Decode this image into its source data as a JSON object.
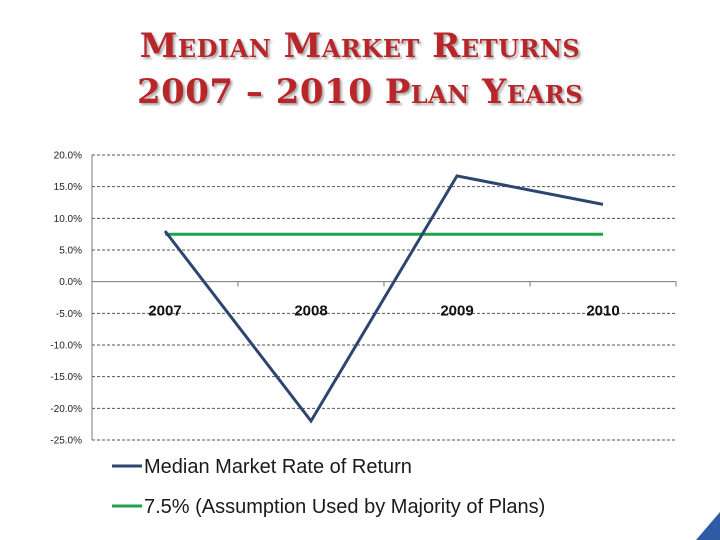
{
  "title_line1": "Median Market Returns",
  "title_line2": "2007 – 2010 Plan Years",
  "chart_data": {
    "type": "line",
    "categories": [
      "2007",
      "2008",
      "2009",
      "2010"
    ],
    "ylim": [
      -25,
      20
    ],
    "ytick_step": 5,
    "ytick_labels": [
      "20.0%",
      "15.0%",
      "10.0%",
      "5.0%",
      "0.0%",
      "-5.0%",
      "-10.0%",
      "-15.0%",
      "-20.0%",
      "-25.0%"
    ],
    "grid": true,
    "legend_position": "bottom",
    "series": [
      {
        "name": "Median Market Rate of Return",
        "values": [
          8.0,
          -22.0,
          16.7,
          12.2
        ],
        "color": "#2c4670"
      },
      {
        "name": "7.5% (Assumption  Used by Majority of Plans)",
        "values": [
          7.5,
          7.5,
          7.5,
          7.5
        ],
        "color": "#1fa34a"
      }
    ]
  }
}
